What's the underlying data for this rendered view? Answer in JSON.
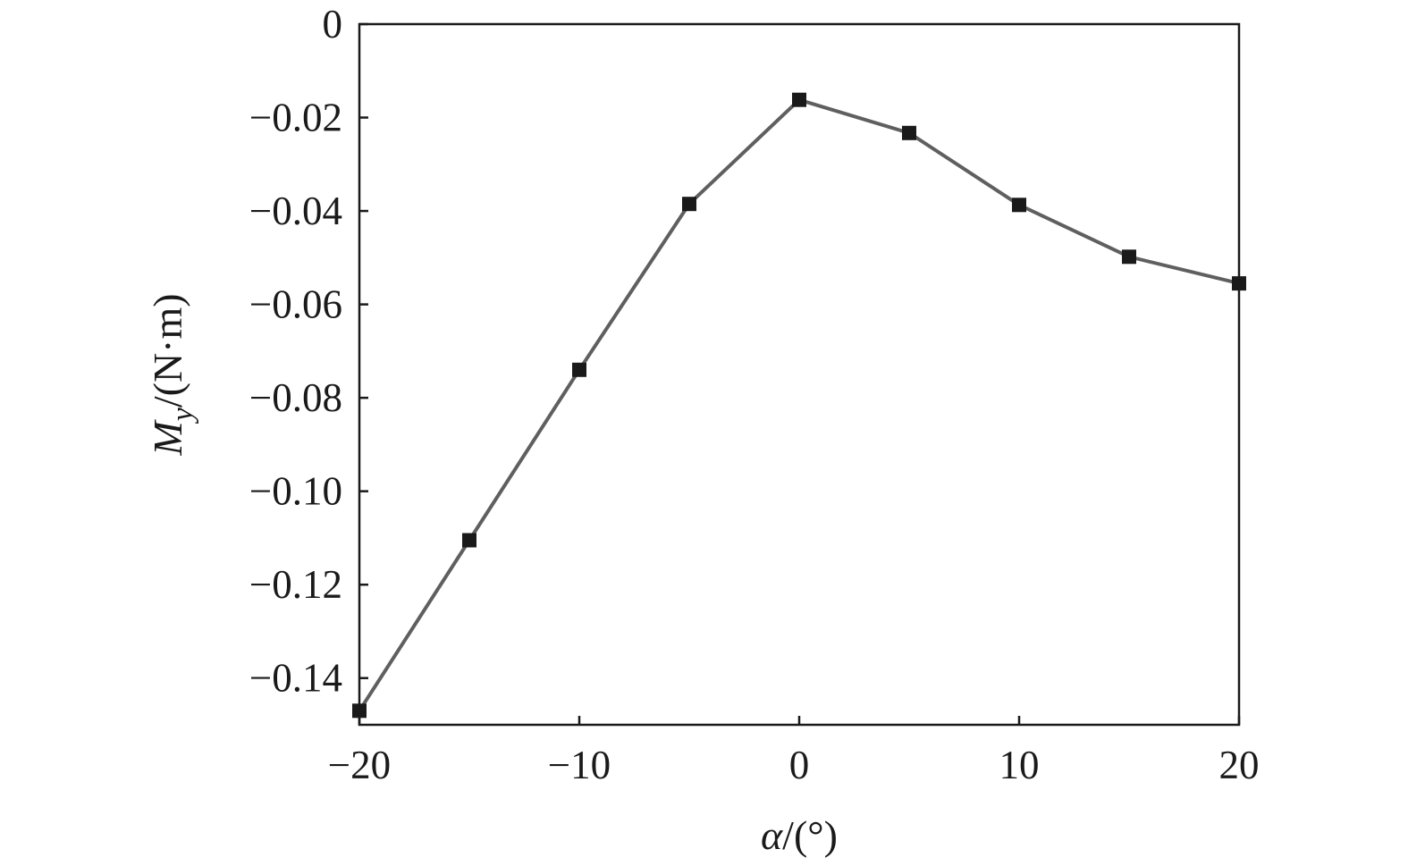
{
  "chart_data": {
    "type": "line",
    "xlabel_symbol": "α",
    "xlabel_unit": "/(°)",
    "ylabel_symbol": "M",
    "ylabel_subscript": "y",
    "ylabel_unit": "/(N·m)",
    "xlim": [
      -20,
      20
    ],
    "ylim": [
      -0.15,
      0
    ],
    "x_ticks": [
      -20,
      -10,
      0,
      10,
      20
    ],
    "x_tick_labels": [
      "−20",
      "−10",
      "0",
      "10",
      "20"
    ],
    "y_ticks": [
      0,
      -0.02,
      -0.04,
      -0.06,
      -0.08,
      -0.1,
      -0.12,
      -0.14
    ],
    "y_tick_labels": [
      "0",
      "−0.02",
      "−0.04",
      "−0.06",
      "−0.08",
      "−0.10",
      "−0.12",
      "−0.14"
    ],
    "grid": false,
    "series": [
      {
        "color": "#5f5f5f",
        "marker": "square",
        "marker_color": "#1a1a1a",
        "x": [
          -20,
          -15,
          -10,
          -5,
          0,
          5,
          10,
          15,
          20
        ],
        "y": [
          -0.147,
          -0.1105,
          -0.074,
          -0.0385,
          -0.0162,
          -0.0233,
          -0.0387,
          -0.0498,
          -0.0555
        ]
      }
    ]
  }
}
